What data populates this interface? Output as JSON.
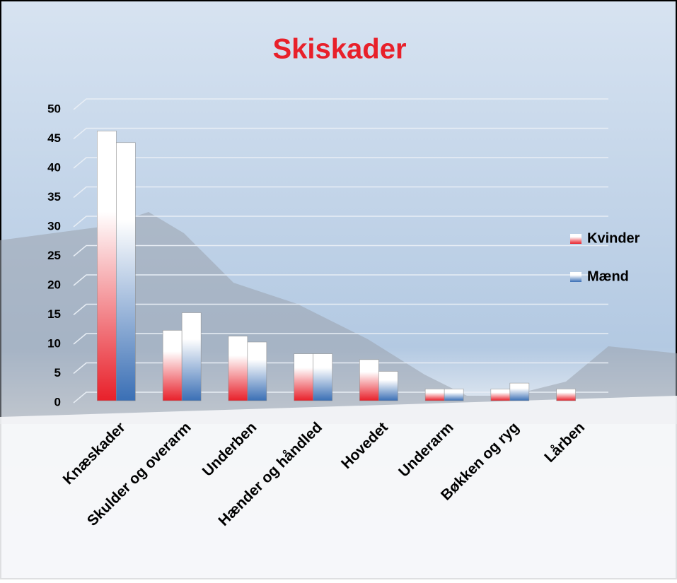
{
  "chart_data": {
    "type": "bar",
    "title": "Skiskader",
    "categories": [
      "Knæskader",
      "Skulder og overarm",
      "Underben",
      "Hænder og håndled",
      "Hovedet",
      "Underarm",
      "Bøkken og ryg",
      "Lårben"
    ],
    "series": [
      {
        "name": "Kvinder",
        "color": "#e8202a",
        "values": [
          46,
          12,
          11,
          8,
          7,
          2,
          2,
          2
        ]
      },
      {
        "name": "Mænd",
        "color": "#3a6fb5",
        "values": [
          44,
          15,
          10,
          8,
          5,
          2,
          3,
          0
        ]
      }
    ],
    "ylim": [
      0,
      50
    ],
    "yticks": [
      0,
      5,
      10,
      15,
      20,
      25,
      30,
      35,
      40,
      45,
      50
    ],
    "grid": true,
    "legend": "right",
    "title_color": "#e8202a"
  }
}
